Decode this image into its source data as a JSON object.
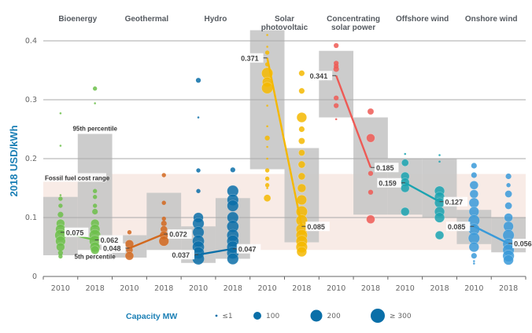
{
  "chart_data": {
    "type": "scatter",
    "title": "",
    "ylabel": "2018 USD/kWh",
    "xlabel": "",
    "ylim": [
      0,
      0.42
    ],
    "yticks": [
      0,
      0.1,
      0.2,
      0.3,
      0.4
    ],
    "ytick_labels": [
      "0",
      "0.1",
      "0.2",
      "0.3",
      "0.4"
    ],
    "grid": true,
    "fossil_fuel_range": {
      "label": "Fossil fuel cost range",
      "low": 0.045,
      "high": 0.174,
      "color": "#f8ebe6"
    },
    "percentile_labels": {
      "high": "95th percentile",
      "low": "5th percentile"
    },
    "years": [
      "2010",
      "2018"
    ],
    "technologies": [
      {
        "name": "Bioenergy",
        "title_lines": [
          "Bioenergy"
        ],
        "color": "#6cc04a",
        "weighted_average": [
          0.075,
          0.062
        ],
        "p5": [
          0.036,
          0.045
        ],
        "p95": [
          0.135,
          0.242
        ],
        "points": [
          [
            [
              0.277,
              1
            ],
            [
              0.222,
              1
            ],
            [
              0.138,
              1
            ],
            [
              0.132,
              2
            ],
            [
              0.12,
              2
            ],
            [
              0.105,
              4
            ],
            [
              0.09,
              8
            ],
            [
              0.08,
              10
            ],
            [
              0.07,
              12
            ],
            [
              0.06,
              10
            ],
            [
              0.05,
              8
            ],
            [
              0.04,
              3
            ],
            [
              0.034,
              2
            ]
          ],
          [
            [
              0.319,
              2
            ],
            [
              0.294,
              1
            ],
            [
              0.145,
              2
            ],
            [
              0.135,
              2
            ],
            [
              0.12,
              2
            ],
            [
              0.11,
              4
            ],
            [
              0.09,
              8
            ],
            [
              0.08,
              10
            ],
            [
              0.07,
              12
            ],
            [
              0.06,
              12
            ],
            [
              0.05,
              10
            ],
            [
              0.045,
              8
            ]
          ]
        ]
      },
      {
        "name": "Geothermal",
        "title_lines": [
          "Geothermal"
        ],
        "color": "#d2691e",
        "weighted_average": [
          0.048,
          0.072
        ],
        "p5": [
          0.032,
          0.045
        ],
        "p95": [
          0.07,
          0.142
        ],
        "points": [
          [
            [
              0.075,
              2
            ],
            [
              0.055,
              8
            ],
            [
              0.045,
              6
            ],
            [
              0.035,
              8
            ]
          ],
          [
            [
              0.172,
              2
            ],
            [
              0.125,
              2
            ],
            [
              0.098,
              2
            ],
            [
              0.09,
              4
            ],
            [
              0.08,
              6
            ],
            [
              0.07,
              8
            ],
            [
              0.06,
              10
            ]
          ]
        ]
      },
      {
        "name": "Hydro",
        "title_lines": [
          "Hydro"
        ],
        "color": "#0a6fa8",
        "weighted_average": [
          0.037,
          0.047
        ],
        "p5": [
          0.023,
          0.03
        ],
        "p95": [
          0.085,
          0.133
        ],
        "points": [
          [
            [
              0.333,
              3
            ],
            [
              0.27,
              1
            ],
            [
              0.18,
              2
            ],
            [
              0.145,
              2
            ],
            [
              0.1,
              10
            ],
            [
              0.09,
              12
            ],
            [
              0.075,
              12
            ],
            [
              0.06,
              14
            ],
            [
              0.05,
              14
            ],
            [
              0.04,
              14
            ],
            [
              0.03,
              14
            ]
          ],
          [
            [
              0.181,
              3
            ],
            [
              0.145,
              12
            ],
            [
              0.13,
              12
            ],
            [
              0.12,
              12
            ],
            [
              0.1,
              12
            ],
            [
              0.085,
              14
            ],
            [
              0.07,
              14
            ],
            [
              0.06,
              14
            ],
            [
              0.05,
              14
            ],
            [
              0.04,
              14
            ],
            [
              0.03,
              12
            ]
          ]
        ]
      },
      {
        "name": "Solar photovoltaic",
        "title_lines": [
          "Solar",
          "photovoltaic"
        ],
        "color": "#f5b800",
        "weighted_average": [
          0.371,
          0.085
        ],
        "p5": [
          0.182,
          0.058
        ],
        "p95": [
          0.418,
          0.218
        ],
        "points": [
          [
            [
              0.41,
              1
            ],
            [
              0.39,
              1
            ],
            [
              0.38,
              2
            ],
            [
              0.36,
              2
            ],
            [
              0.345,
              12
            ],
            [
              0.33,
              10
            ],
            [
              0.32,
              12
            ],
            [
              0.29,
              1
            ],
            [
              0.255,
              1
            ],
            [
              0.235,
              3
            ],
            [
              0.22,
              1
            ],
            [
              0.2,
              1
            ],
            [
              0.18,
              2
            ],
            [
              0.166,
              2
            ],
            [
              0.155,
              2
            ],
            [
              0.15,
              1
            ],
            [
              0.133,
              6
            ]
          ],
          [
            [
              0.345,
              4
            ],
            [
              0.315,
              4
            ],
            [
              0.27,
              10
            ],
            [
              0.25,
              4
            ],
            [
              0.23,
              5
            ],
            [
              0.21,
              5
            ],
            [
              0.19,
              6
            ],
            [
              0.17,
              6
            ],
            [
              0.15,
              8
            ],
            [
              0.13,
              10
            ],
            [
              0.11,
              12
            ],
            [
              0.095,
              12
            ],
            [
              0.08,
              12
            ],
            [
              0.07,
              12
            ],
            [
              0.06,
              12
            ],
            [
              0.05,
              12
            ],
            [
              0.042,
              10
            ]
          ]
        ]
      },
      {
        "name": "Concentrating solar power",
        "title_lines": [
          "Concentrating",
          "solar power"
        ],
        "color": "#ee5a55",
        "weighted_average": [
          0.341,
          0.185
        ],
        "p5": [
          0.27,
          0.105
        ],
        "p95": [
          0.383,
          0.27
        ],
        "points": [
          [
            [
              0.392,
              3
            ],
            [
              0.362,
              3
            ],
            [
              0.357,
              3
            ],
            [
              0.352,
              4
            ],
            [
              0.303,
              3
            ],
            [
              0.29,
              3
            ],
            [
              0.267,
              1
            ]
          ],
          [
            [
              0.28,
              5
            ],
            [
              0.235,
              8
            ],
            [
              0.175,
              3
            ],
            [
              0.143,
              3
            ],
            [
              0.097,
              8
            ]
          ]
        ]
      },
      {
        "name": "Offshore wind",
        "title_lines": [
          "Offshore wind"
        ],
        "color": "#1aa3b0",
        "weighted_average": [
          0.159,
          0.127
        ],
        "p5": [
          0.105,
          0.1
        ],
        "p95": [
          0.2,
          0.2
        ],
        "points": [
          [
            [
              0.208,
              1
            ],
            [
              0.193,
              6
            ],
            [
              0.17,
              8
            ],
            [
              0.16,
              8
            ],
            [
              0.15,
              8
            ],
            [
              0.11,
              8
            ]
          ],
          [
            [
              0.206,
              1
            ],
            [
              0.195,
              1
            ],
            [
              0.145,
              10
            ],
            [
              0.135,
              10
            ],
            [
              0.125,
              10
            ],
            [
              0.11,
              10
            ],
            [
              0.1,
              10
            ],
            [
              0.07,
              8
            ]
          ]
        ]
      },
      {
        "name": "Onshore wind",
        "title_lines": [
          "Onshore wind"
        ],
        "color": "#3a9ad9",
        "weighted_average": [
          0.085,
          0.056
        ],
        "p5": [
          0.055,
          0.041
        ],
        "p95": [
          0.113,
          0.1
        ],
        "points": [
          [
            [
              0.188,
              4
            ],
            [
              0.172,
              4
            ],
            [
              0.155,
              8
            ],
            [
              0.14,
              8
            ],
            [
              0.125,
              10
            ],
            [
              0.11,
              10
            ],
            [
              0.095,
              12
            ],
            [
              0.08,
              12
            ],
            [
              0.065,
              12
            ],
            [
              0.05,
              10
            ],
            [
              0.035,
              4
            ],
            [
              0.026,
              1
            ],
            [
              0.022,
              1
            ]
          ],
          [
            [
              0.17,
              4
            ],
            [
              0.155,
              2
            ],
            [
              0.14,
              6
            ],
            [
              0.12,
              6
            ],
            [
              0.1,
              8
            ],
            [
              0.085,
              10
            ],
            [
              0.07,
              12
            ],
            [
              0.055,
              12
            ],
            [
              0.045,
              12
            ],
            [
              0.035,
              12
            ],
            [
              0.028,
              10
            ]
          ]
        ]
      }
    ],
    "legend": {
      "title": "Capacity MW",
      "placement": "bottom",
      "items": [
        {
          "label": "≤1",
          "capacity": 1
        },
        {
          "label": "100",
          "capacity": 100
        },
        {
          "label": "200",
          "capacity": 200
        },
        {
          "label": "≥ 300",
          "capacity": 300
        }
      ],
      "color": "#0a6fa8"
    }
  }
}
